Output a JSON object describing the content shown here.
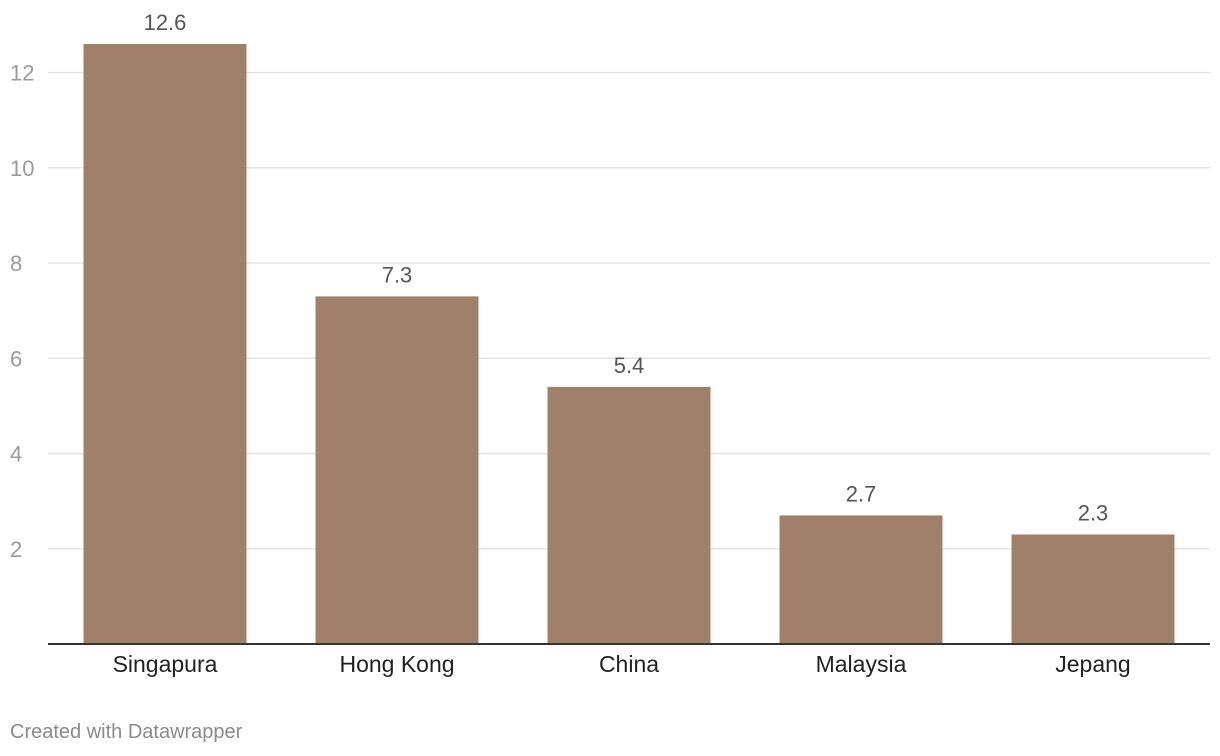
{
  "chart_data": {
    "type": "bar",
    "title": "",
    "xlabel": "",
    "ylabel": "",
    "categories": [
      "Singapura",
      "Hong Kong",
      "China",
      "Malaysia",
      "Jepang"
    ],
    "values": [
      12.6,
      7.3,
      5.4,
      2.7,
      2.3
    ],
    "value_labels": [
      "12.6",
      "7.3",
      "5.4",
      "2.7",
      "2.3"
    ],
    "ylim": [
      0,
      12.6
    ],
    "yticks": [
      2,
      4,
      6,
      8,
      10,
      12
    ],
    "grid": true,
    "legend": "none",
    "bar_color": "#a0806b"
  },
  "footer": {
    "credit": "Created with Datawrapper"
  }
}
